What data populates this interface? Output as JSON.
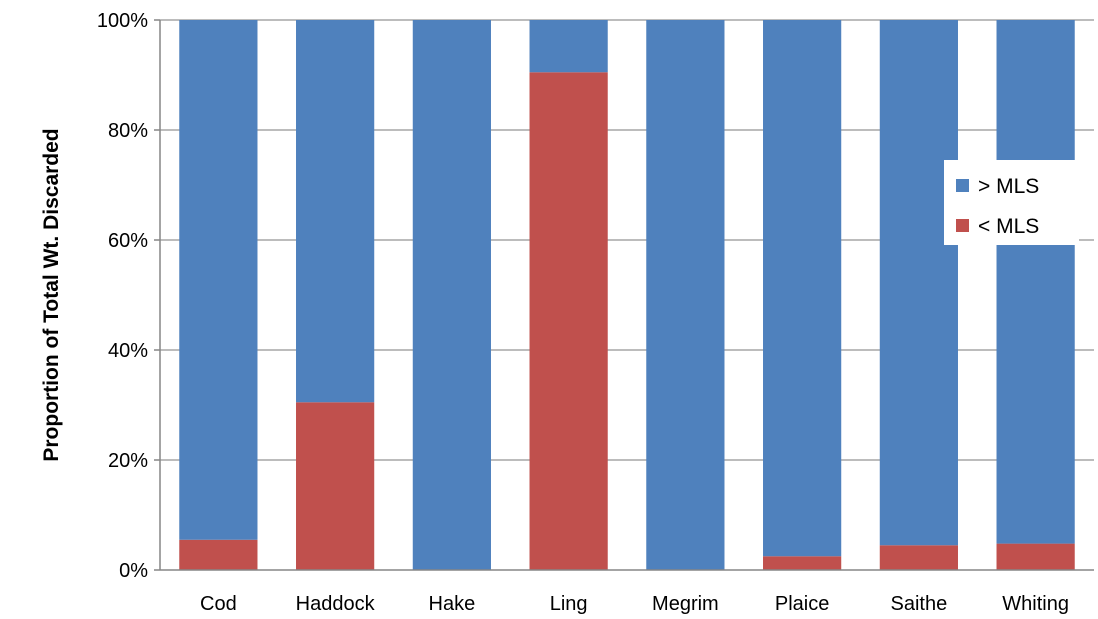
{
  "chart_data": {
    "type": "bar",
    "stacked": true,
    "normalized": true,
    "title": "",
    "xlabel": "",
    "ylabel": "Proportion of Total Wt. Discarded",
    "ylim": [
      0,
      100
    ],
    "yticks": [
      "0%",
      "20%",
      "40%",
      "60%",
      "80%",
      "100%"
    ],
    "categories": [
      "Cod",
      "Haddock",
      "Hake",
      "Ling",
      "Megrim",
      "Plaice",
      "Saithe",
      "Whiting"
    ],
    "series": [
      {
        "name": "< MLS",
        "color": "#C0504D",
        "values": [
          5.5,
          30.5,
          0,
          90.5,
          0,
          2.5,
          4.5,
          4.8
        ]
      },
      {
        "name": "> MLS",
        "color": "#4F81BD",
        "values": [
          94.5,
          69.5,
          100,
          9.5,
          100,
          97.5,
          95.5,
          95.2
        ]
      }
    ],
    "legend": {
      "placement": "right",
      "entries": [
        {
          "label": "> MLS",
          "color": "#4F81BD"
        },
        {
          "label": "< MLS",
          "color": "#C0504D"
        }
      ]
    },
    "grid": {
      "horizontal": true,
      "color": "#A6A6A6"
    }
  }
}
